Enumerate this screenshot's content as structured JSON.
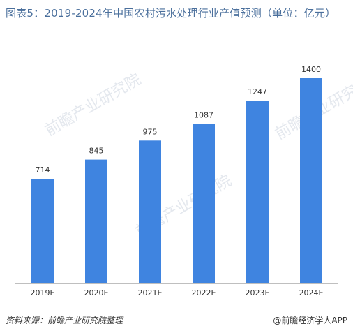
{
  "title": "图表5：2019-2024年中国农村污水处理行业产值预测（单位：亿元）",
  "footer": {
    "source": "资料来源：前瞻产业研究院整理",
    "credit": "@前瞻经济学人APP"
  },
  "watermark": "前瞻产业研究院",
  "colors": {
    "bar": "#3f84e0",
    "title": "#4a6f9c",
    "axis": "#bfbfbf"
  },
  "chart_data": {
    "type": "bar",
    "title": "图表5：2019-2024年中国农村污水处理行业产值预测（单位：亿元）",
    "categories": [
      "2019E",
      "2020E",
      "2021E",
      "2022E",
      "2023E",
      "2024E"
    ],
    "values": [
      714,
      845,
      975,
      1087,
      1247,
      1400
    ],
    "xlabel": "",
    "ylabel": "",
    "ylim": [
      0,
      1600
    ],
    "grid": false,
    "legend": "none",
    "data_labels": true
  }
}
